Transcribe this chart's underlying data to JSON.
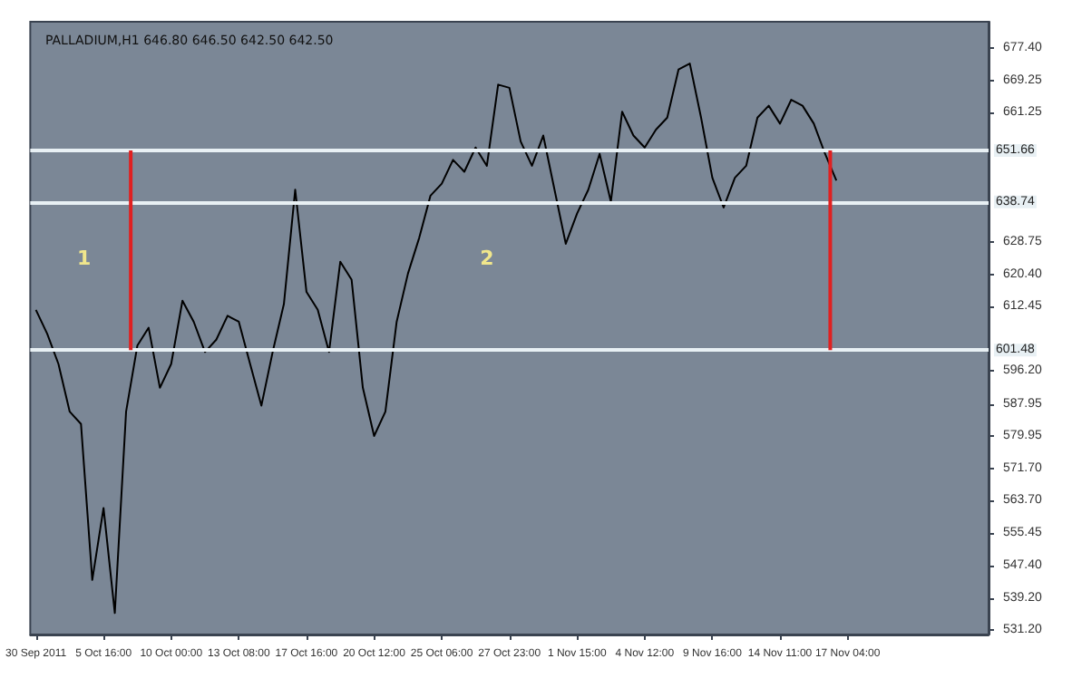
{
  "chart_data": {
    "type": "line",
    "title": "PALLADIUM,H1 646.80 646.50 642.50 642.50",
    "categories": [
      "30 Sep 2011",
      null,
      null,
      null,
      null,
      null,
      "5 Oct 16:00",
      null,
      null,
      null,
      null,
      null,
      "10 Oct 00:00",
      null,
      null,
      null,
      null,
      null,
      "13 Oct 08:00",
      null,
      null,
      null,
      null,
      null,
      "17 Oct 16:00",
      null,
      null,
      null,
      null,
      null,
      "20 Oct 12:00",
      null,
      null,
      null,
      null,
      null,
      "25 Oct 06:00",
      null,
      null,
      null,
      null,
      null,
      "27 Oct 23:00",
      null,
      null,
      null,
      null,
      null,
      "1 Nov 15:00",
      null,
      null,
      null,
      null,
      null,
      "4 Nov 12:00",
      null,
      null,
      null,
      null,
      null,
      "9 Nov 16:00",
      null,
      null,
      null,
      null,
      null,
      "14 Nov 11:00",
      null,
      null,
      null,
      null,
      null,
      "17 Nov 04:00",
      null,
      null,
      null,
      null,
      null,
      null,
      null,
      null,
      null,
      null,
      null,
      null
    ],
    "series": [
      {
        "color": "#000000",
        "values": [
          611.6,
          605.6,
          598.0,
          586.0,
          582.9,
          543.7,
          561.8,
          535.4,
          586.0,
          602.6,
          607.1,
          592.0,
          598.0,
          613.9,
          608.6,
          601.0,
          604.1,
          610.1,
          608.6,
          598.0,
          587.5,
          601.0,
          613.1,
          641.8,
          616.1,
          611.6,
          601.0,
          623.7,
          619.2,
          592.0,
          579.9,
          586.0,
          608.6,
          620.7,
          629.7,
          640.3,
          643.3,
          649.3,
          646.3,
          652.4,
          647.8,
          668.2,
          667.4,
          653.9,
          647.8,
          655.4,
          641.8,
          628.2,
          635.8,
          641.8,
          650.8,
          638.8,
          661.4,
          655.4,
          652.4,
          656.9,
          659.9,
          672.0,
          673.5,
          659.9,
          644.8,
          637.3,
          644.8,
          647.8,
          659.9,
          662.9,
          658.4,
          664.4,
          662.9,
          658.4,
          650.8,
          644.1,
          null,
          null,
          null,
          null,
          null,
          null,
          null,
          null,
          null,
          null,
          null,
          null,
          null
        ]
      }
    ],
    "ylim": [
      530,
      684
    ],
    "yticks": [
      {
        "value": 677.4,
        "label": "677.40"
      },
      {
        "value": 669.25,
        "label": "669.25"
      },
      {
        "value": 661.25,
        "label": "661.25"
      },
      {
        "value": 628.75,
        "label": "628.75"
      },
      {
        "value": 620.4,
        "label": "620.40"
      },
      {
        "value": 612.45,
        "label": "612.45"
      },
      {
        "value": 596.2,
        "label": "596.20"
      },
      {
        "value": 587.95,
        "label": "587.95"
      },
      {
        "value": 579.95,
        "label": "579.95"
      },
      {
        "value": 571.7,
        "label": "571.70"
      },
      {
        "value": 563.7,
        "label": "563.70"
      },
      {
        "value": 555.45,
        "label": "555.45"
      },
      {
        "value": 547.4,
        "label": "547.40"
      },
      {
        "value": 539.2,
        "label": "539.20"
      },
      {
        "value": 531.2,
        "label": "531.20"
      }
    ],
    "ref_lines": [
      {
        "axis": "y",
        "value": 651.66,
        "label": "651.66",
        "color": "#e8f0f4"
      },
      {
        "axis": "y",
        "value": 638.74,
        "label": "638.74",
        "color": "#e8f0f4"
      },
      {
        "axis": "y",
        "value": 601.48,
        "label": "601.48",
        "color": "#e8f0f4"
      }
    ],
    "annotations": [
      "1",
      "2"
    ],
    "grid": false,
    "marker": "none",
    "line_style": "solid"
  }
}
